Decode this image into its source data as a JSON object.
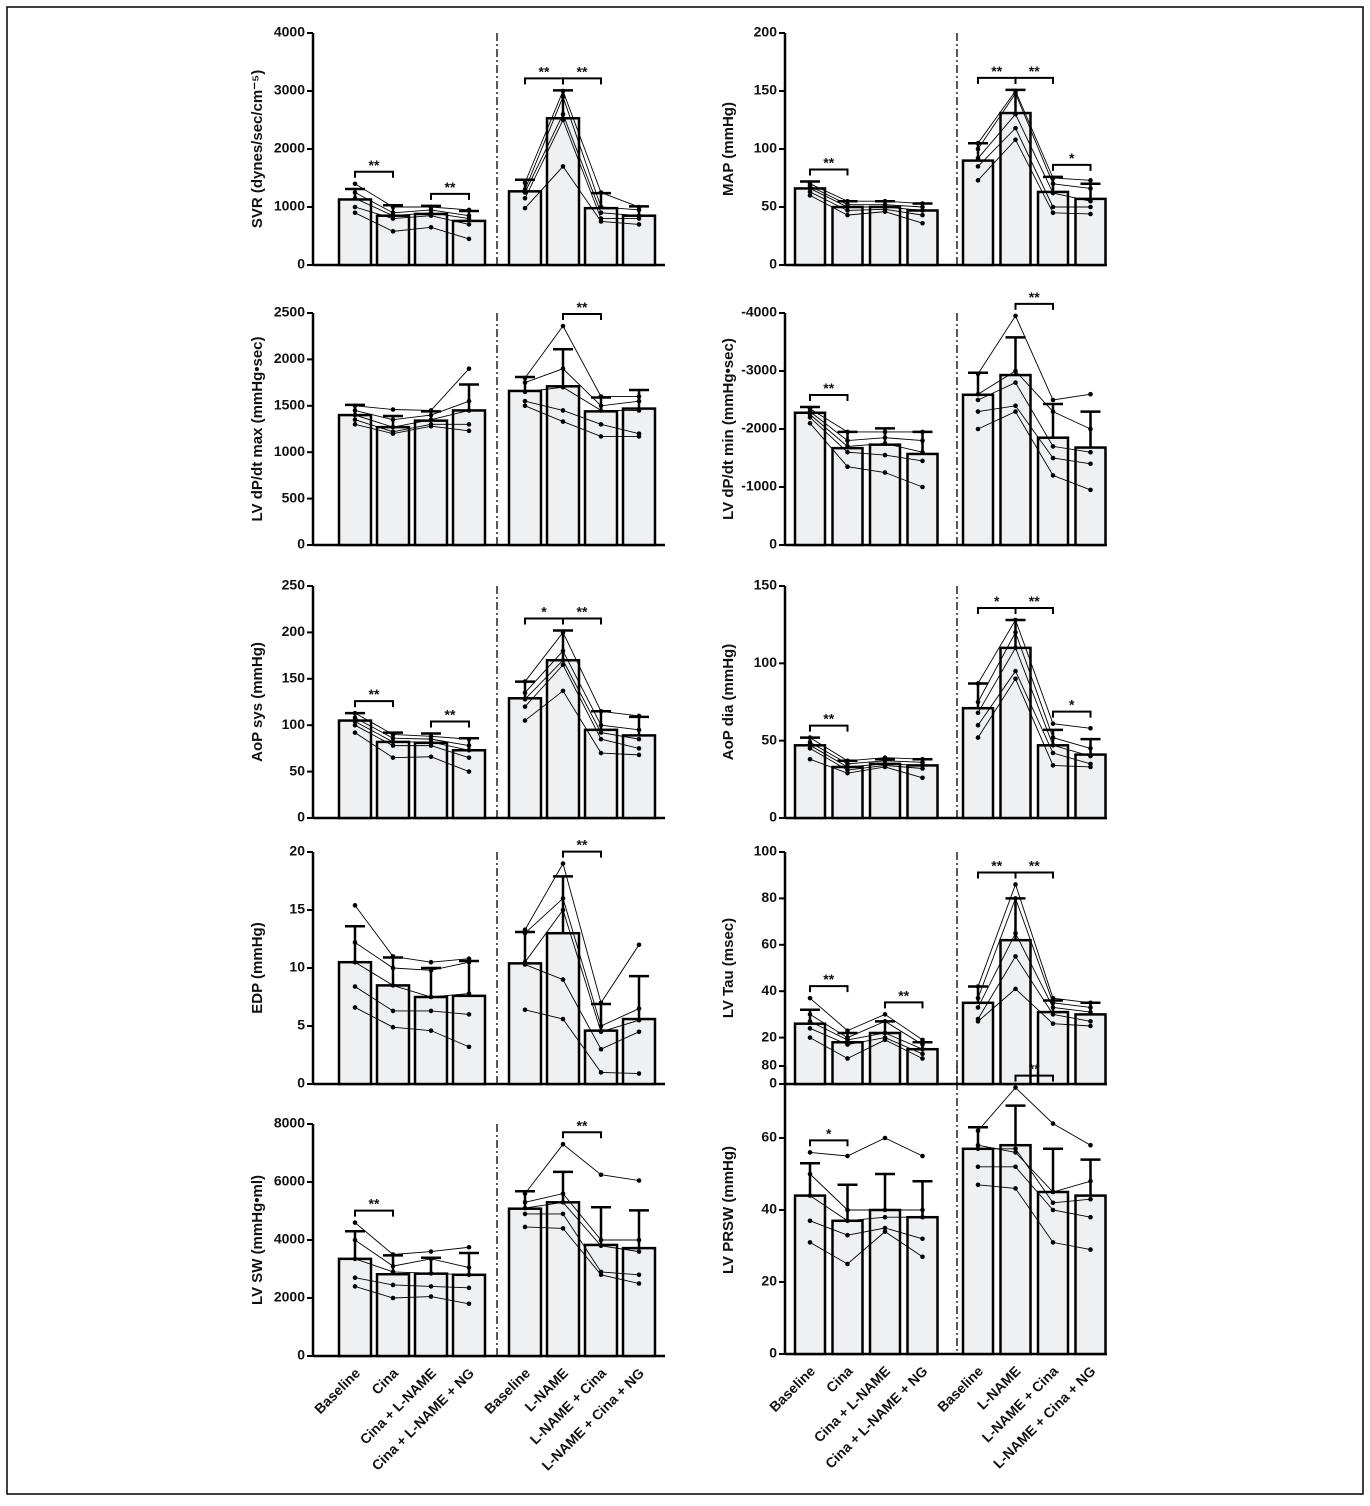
{
  "chart_data": [
    {
      "type": "bar",
      "ylabel": "SVR (dynes/sec/cm⁻⁵)",
      "ylim": [
        0,
        4000
      ],
      "yticks": [
        0,
        1000,
        2000,
        3000,
        4000
      ],
      "values": [
        1130,
        850,
        880,
        760,
        1270,
        2530,
        980,
        850
      ],
      "errors": [
        180,
        180,
        140,
        170,
        200,
        480,
        260,
        160
      ],
      "subjects": [
        [
          1400,
          1000,
          1000,
          950,
          1420,
          3000,
          1250,
          1000
        ],
        [
          1250,
          900,
          950,
          850,
          1300,
          2900,
          1000,
          950
        ],
        [
          1150,
          850,
          900,
          800,
          1250,
          2600,
          900,
          850
        ],
        [
          1000,
          800,
          850,
          700,
          1150,
          2500,
          800,
          800
        ],
        [
          900,
          580,
          650,
          450,
          980,
          1700,
          750,
          700
        ]
      ],
      "significance": [
        {
          "between": [
            0,
            1
          ],
          "label": "**"
        },
        {
          "between": [
            2,
            3
          ],
          "label": "**"
        },
        {
          "between": [
            4,
            5
          ],
          "label": "**"
        },
        {
          "between": [
            5,
            6
          ],
          "label": "**"
        }
      ]
    },
    {
      "type": "bar",
      "ylabel": "MAP (mmHg)",
      "ylim": [
        0,
        200
      ],
      "yticks": [
        0,
        50,
        100,
        150,
        200
      ],
      "values": [
        66,
        50,
        50,
        47,
        90,
        131,
        63,
        57
      ],
      "errors": [
        6,
        5,
        5,
        6,
        15,
        20,
        13,
        13
      ],
      "subjects": [
        [
          70,
          55,
          55,
          53,
          105,
          150,
          75,
          73
        ],
        [
          68,
          52,
          52,
          50,
          100,
          148,
          70,
          66
        ],
        [
          66,
          50,
          50,
          47,
          92,
          130,
          62,
          55
        ],
        [
          63,
          47,
          48,
          43,
          85,
          118,
          50,
          50
        ],
        [
          60,
          43,
          46,
          36,
          73,
          108,
          45,
          44
        ]
      ],
      "significance": [
        {
          "between": [
            0,
            1
          ],
          "label": "**"
        },
        {
          "between": [
            4,
            5
          ],
          "label": "**"
        },
        {
          "between": [
            5,
            6
          ],
          "label": "**"
        },
        {
          "between": [
            6,
            7
          ],
          "label": "*"
        }
      ]
    },
    {
      "type": "bar",
      "ylabel": "LV dP/dt max (mmHg•sec)",
      "ylim": [
        0,
        2500
      ],
      "yticks": [
        0,
        500,
        1000,
        1500,
        2000,
        2500
      ],
      "values": [
        1400,
        1270,
        1340,
        1450,
        1660,
        1710,
        1440,
        1470
      ],
      "errors": [
        110,
        120,
        100,
        280,
        150,
        400,
        150,
        200
      ],
      "subjects": [
        [
          1500,
          1460,
          1450,
          1900,
          1800,
          2360,
          1600,
          1600
        ],
        [
          1450,
          1350,
          1400,
          1550,
          1750,
          1900,
          1500,
          1550
        ],
        [
          1400,
          1270,
          1350,
          1450,
          1650,
          1700,
          1450,
          1450
        ],
        [
          1350,
          1220,
          1300,
          1300,
          1550,
          1450,
          1300,
          1200
        ],
        [
          1300,
          1200,
          1280,
          1230,
          1500,
          1330,
          1170,
          1170
        ]
      ],
      "significance": [
        {
          "between": [
            5,
            6
          ],
          "label": "**"
        }
      ]
    },
    {
      "type": "bar",
      "ylabel": "LV dP/dt min (mmHg•sec)",
      "ylim": [
        0,
        -4000
      ],
      "yticks": [
        0,
        -1000,
        -2000,
        -3000,
        -4000
      ],
      "values": [
        -2280,
        -1670,
        -1730,
        -1570,
        -2590,
        -2930,
        -1850,
        -1680
      ],
      "errors": [
        100,
        280,
        280,
        380,
        380,
        650,
        580,
        620
      ],
      "subjects": [
        [
          -2350,
          -1950,
          -1950,
          -1950,
          -2950,
          -3950,
          -2500,
          -2600
        ],
        [
          -2300,
          -1800,
          -1850,
          -1800,
          -2600,
          -3000,
          -2300,
          -2000
        ],
        [
          -2250,
          -1700,
          -1750,
          -1600,
          -2500,
          -2800,
          -1700,
          -1600
        ],
        [
          -2200,
          -1600,
          -1550,
          -1450,
          -2300,
          -2400,
          -1500,
          -1400
        ],
        [
          -2100,
          -1350,
          -1250,
          -1000,
          -2000,
          -2300,
          -1200,
          -950
        ]
      ],
      "significance": [
        {
          "between": [
            0,
            1
          ],
          "label": "**"
        },
        {
          "between": [
            5,
            6
          ],
          "label": "**"
        }
      ]
    },
    {
      "type": "bar",
      "ylabel": "AoP sys (mmHg)",
      "ylim": [
        0,
        250
      ],
      "yticks": [
        0,
        50,
        100,
        150,
        200,
        250
      ],
      "values": [
        105,
        82,
        81,
        73,
        129,
        170,
        95,
        89
      ],
      "errors": [
        8,
        10,
        10,
        13,
        18,
        32,
        20,
        20
      ],
      "subjects": [
        [
          113,
          90,
          88,
          85,
          147,
          200,
          115,
          110
        ],
        [
          108,
          86,
          85,
          78,
          135,
          180,
          100,
          95
        ],
        [
          104,
          82,
          82,
          73,
          128,
          170,
          92,
          85
        ],
        [
          100,
          78,
          78,
          65,
          120,
          165,
          85,
          75
        ],
        [
          92,
          65,
          66,
          50,
          105,
          137,
          70,
          68
        ]
      ],
      "significance": [
        {
          "between": [
            0,
            1
          ],
          "label": "**"
        },
        {
          "between": [
            2,
            3
          ],
          "label": "**"
        },
        {
          "between": [
            4,
            5
          ],
          "label": "*"
        },
        {
          "between": [
            5,
            6
          ],
          "label": "**"
        }
      ]
    },
    {
      "type": "bar",
      "ylabel": "AoP dia (mmHg)",
      "ylim": [
        0,
        150
      ],
      "yticks": [
        0,
        50,
        100,
        150
      ],
      "values": [
        47,
        33,
        35,
        34,
        71,
        110,
        47,
        41
      ],
      "errors": [
        5,
        4,
        3,
        4,
        16,
        18,
        10,
        10
      ],
      "subjects": [
        [
          52,
          37,
          39,
          38,
          87,
          128,
          61,
          58
        ],
        [
          49,
          35,
          37,
          36,
          75,
          120,
          52,
          45
        ],
        [
          47,
          33,
          35,
          34,
          68,
          110,
          47,
          40
        ],
        [
          45,
          31,
          34,
          32,
          60,
          95,
          42,
          35
        ],
        [
          38,
          29,
          33,
          26,
          52,
          90,
          34,
          33
        ]
      ],
      "significance": [
        {
          "between": [
            0,
            1
          ],
          "label": "**"
        },
        {
          "between": [
            4,
            5
          ],
          "label": "*"
        },
        {
          "between": [
            5,
            6
          ],
          "label": "**"
        },
        {
          "between": [
            6,
            7
          ],
          "label": "*"
        }
      ]
    },
    {
      "type": "bar",
      "ylabel": "EDP (mmHg)",
      "ylim": [
        0,
        20
      ],
      "yticks": [
        0,
        5,
        10,
        15,
        20
      ],
      "values": [
        10.5,
        8.5,
        7.5,
        7.6,
        10.4,
        13,
        4.6,
        5.6
      ],
      "errors": [
        3.1,
        2.4,
        2.5,
        3,
        2.7,
        4.9,
        2.3,
        3.7
      ],
      "subjects": [
        [
          15.4,
          11,
          10.5,
          10.8,
          13.3,
          19,
          7,
          12
        ],
        [
          12.2,
          10,
          9.8,
          10.5,
          13,
          16,
          5,
          6.5
        ],
        [
          10.5,
          8.5,
          7.5,
          7.8,
          10.5,
          15,
          4.5,
          5.5
        ],
        [
          8.4,
          6.3,
          6.3,
          6,
          10.3,
          9,
          3,
          4.5
        ],
        [
          6.6,
          4.9,
          4.6,
          3.2,
          6.4,
          5.6,
          1,
          0.9
        ]
      ],
      "significance": [
        {
          "between": [
            5,
            6
          ],
          "label": "**"
        }
      ]
    },
    {
      "type": "bar",
      "ylabel": "LV Tau (msec)",
      "ylim": [
        0,
        100
      ],
      "yticks": [
        0,
        20,
        40,
        60,
        80,
        100
      ],
      "values": [
        26,
        18,
        22,
        15,
        35,
        62,
        31,
        30
      ],
      "errors": [
        6,
        4,
        5,
        3,
        7,
        18,
        5,
        5
      ],
      "subjects": [
        [
          37,
          23,
          30,
          19,
          42,
          86,
          37,
          35
        ],
        [
          30,
          20,
          27,
          17,
          37,
          80,
          35,
          33
        ],
        [
          27,
          19,
          22,
          15,
          33,
          65,
          33,
          31
        ],
        [
          24,
          17,
          20,
          13,
          28,
          55,
          30,
          27
        ],
        [
          20,
          11,
          19,
          11,
          27,
          41,
          26,
          25
        ]
      ],
      "significance": [
        {
          "between": [
            0,
            1
          ],
          "label": "**"
        },
        {
          "between": [
            2,
            3
          ],
          "label": "**"
        },
        {
          "between": [
            4,
            5
          ],
          "label": "**"
        },
        {
          "between": [
            5,
            6
          ],
          "label": "**"
        }
      ]
    },
    {
      "type": "bar",
      "ylabel": "LV SW (mmHg•ml)",
      "ylim": [
        0,
        8000
      ],
      "yticks": [
        0,
        2000,
        4000,
        6000,
        8000
      ],
      "categories": [
        "Baseline",
        "Cina",
        "Cina + L-NAME",
        "Cina + L-NAME + NG",
        "Baseline",
        "L-NAME",
        "L-NAME + Cina",
        "L-NAME + Cina + NG"
      ],
      "values": [
        3350,
        2820,
        2840,
        2800,
        5080,
        5300,
        3830,
        3720
      ],
      "errors": [
        950,
        650,
        550,
        750,
        600,
        1050,
        1300,
        1300
      ],
      "subjects": [
        [
          4600,
          3500,
          3600,
          3750,
          5600,
          7300,
          6250,
          6050
        ],
        [
          4000,
          3100,
          3350,
          3050,
          5300,
          5600,
          4000,
          4000
        ],
        [
          3350,
          2900,
          2850,
          2800,
          5100,
          5300,
          3800,
          3600
        ],
        [
          2700,
          2450,
          2400,
          2350,
          4900,
          4900,
          2900,
          2800
        ],
        [
          2400,
          2000,
          2050,
          1800,
          4450,
          4400,
          2800,
          2500
        ]
      ],
      "significance": [
        {
          "between": [
            0,
            1
          ],
          "label": "**"
        },
        {
          "between": [
            5,
            6
          ],
          "label": "**"
        }
      ]
    },
    {
      "type": "bar",
      "ylabel": "LV PRSW (mmHg)",
      "ylim": [
        0,
        80
      ],
      "yticks": [
        0,
        20,
        40,
        60,
        80
      ],
      "categories": [
        "Baseline",
        "Cina",
        "Cina + L-NAME",
        "Cina + L-NAME + NG",
        "Baseline",
        "L-NAME",
        "L-NAME + Cina",
        "L-NAME + Cina + NG"
      ],
      "values": [
        44,
        37,
        40,
        38,
        57,
        58,
        45,
        44
      ],
      "errors": [
        9,
        10,
        10,
        10,
        6,
        11,
        12,
        10
      ],
      "subjects": [
        [
          56,
          55,
          60,
          55,
          62,
          74,
          64,
          58
        ],
        [
          50,
          40,
          40,
          40,
          58,
          56,
          45,
          48
        ],
        [
          44,
          37,
          38,
          38,
          57,
          57,
          42,
          43
        ],
        [
          37,
          33,
          35,
          32,
          52,
          52,
          40,
          38
        ],
        [
          31,
          25,
          34,
          27,
          47,
          46,
          31,
          29
        ]
      ],
      "significance": [
        {
          "between": [
            0,
            1
          ],
          "label": "*"
        },
        {
          "between": [
            5,
            6
          ],
          "label": "**"
        }
      ]
    }
  ]
}
